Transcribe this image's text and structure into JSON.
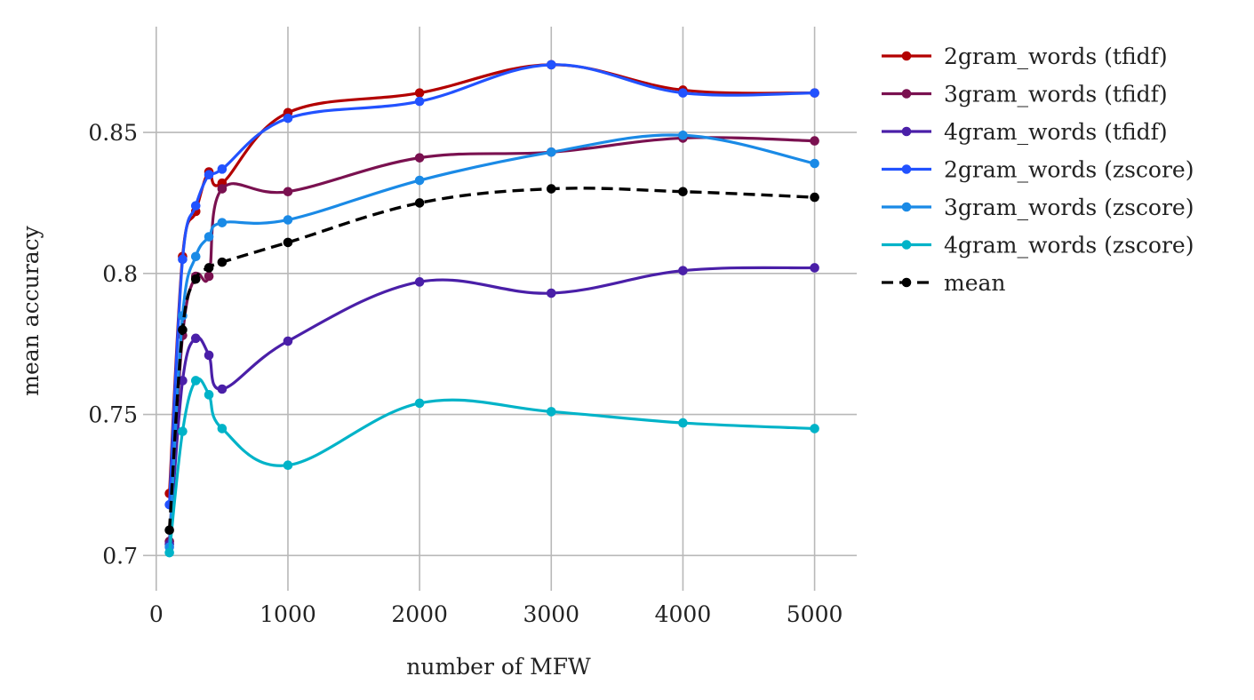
{
  "chart_data": {
    "type": "line",
    "title": "",
    "xlabel": "number of MFW",
    "ylabel": "mean accuracy",
    "xlim": [
      -100,
      5320
    ],
    "ylim": [
      0.6875,
      0.8875
    ],
    "xticks": [
      0,
      1000,
      2000,
      3000,
      4000,
      5000
    ],
    "xtick_labels": [
      "0",
      "1000",
      "2000",
      "3000",
      "4000",
      "5000"
    ],
    "yticks": [
      0.7,
      0.75,
      0.8,
      0.85
    ],
    "ytick_labels": [
      "0.7",
      "0.75",
      "0.8",
      "0.85"
    ],
    "grid": true,
    "legend_position": "top-right, outside plot",
    "x": [
      100,
      200,
      300,
      400,
      500,
      1000,
      2000,
      3000,
      4000,
      5000
    ],
    "series": [
      {
        "name": "2gram_words (tfidf)",
        "color": "#b30000",
        "dash": false,
        "values": [
          0.722,
          0.806,
          0.822,
          0.836,
          0.832,
          0.857,
          0.864,
          0.874,
          0.865,
          0.864
        ]
      },
      {
        "name": "3gram_words (tfidf)",
        "color": "#7a1150",
        "dash": false,
        "values": [
          0.705,
          0.778,
          0.799,
          0.799,
          0.83,
          0.829,
          0.841,
          0.843,
          0.848,
          0.847
        ]
      },
      {
        "name": "4gram_words (tfidf)",
        "color": "#4a1fa8",
        "dash": false,
        "values": [
          0.704,
          0.762,
          0.777,
          0.771,
          0.759,
          0.776,
          0.797,
          0.793,
          0.801,
          0.802
        ]
      },
      {
        "name": "2gram_words (zscore)",
        "color": "#2252ff",
        "dash": false,
        "values": [
          0.718,
          0.805,
          0.824,
          0.835,
          0.837,
          0.855,
          0.861,
          0.874,
          0.864,
          0.864
        ]
      },
      {
        "name": "3gram_words (zscore)",
        "color": "#1a8ae6",
        "dash": false,
        "values": [
          0.703,
          0.785,
          0.806,
          0.813,
          0.818,
          0.819,
          0.833,
          0.843,
          0.849,
          0.839
        ]
      },
      {
        "name": "4gram_words (zscore)",
        "color": "#00b3c8",
        "dash": false,
        "values": [
          0.701,
          0.744,
          0.762,
          0.757,
          0.745,
          0.732,
          0.754,
          0.751,
          0.747,
          0.745
        ]
      },
      {
        "name": "mean",
        "color": "#000000",
        "dash": true,
        "values": [
          0.709,
          0.78,
          0.798,
          0.802,
          0.804,
          0.811,
          0.825,
          0.83,
          0.829,
          0.827
        ]
      }
    ]
  }
}
